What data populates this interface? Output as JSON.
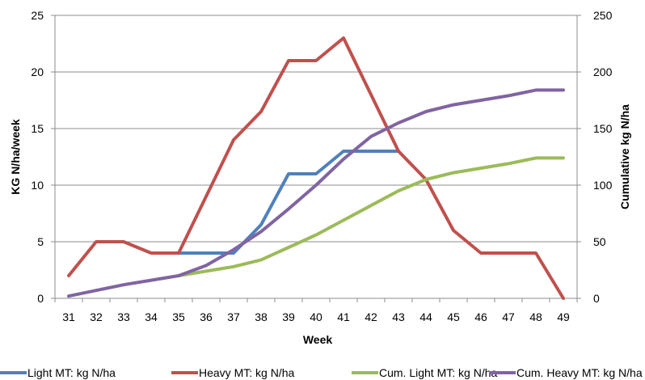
{
  "chart_data": {
    "type": "line",
    "xlabel": "Week",
    "ylabel": "KG N/ha/week",
    "y2label": "Cumulative kg N/ha",
    "x": [
      31,
      32,
      33,
      34,
      35,
      36,
      37,
      38,
      39,
      40,
      41,
      42,
      43,
      44,
      45,
      46,
      47,
      48,
      49
    ],
    "ylim": [
      0,
      25
    ],
    "y2lim": [
      0,
      250
    ],
    "yticks": [
      0,
      5,
      10,
      15,
      20,
      25
    ],
    "y2ticks": [
      0,
      50,
      100,
      150,
      200,
      250
    ],
    "grid": true,
    "legend_position": "bottom",
    "series": [
      {
        "name": "Light MT: kg N/ha",
        "axis": "left",
        "color": "#4F81BD",
        "values": [
          null,
          null,
          null,
          null,
          4,
          4,
          4,
          6.5,
          11,
          11,
          13,
          13,
          13,
          null,
          null,
          null,
          null,
          null,
          null
        ]
      },
      {
        "name": "Heavy MT: kg N/ha",
        "axis": "left",
        "color": "#C0504D",
        "values": [
          2,
          5,
          5,
          4,
          4,
          9,
          14,
          16.5,
          21,
          21,
          23,
          18,
          13,
          10.5,
          6,
          4,
          4,
          4,
          0
        ]
      },
      {
        "name": "Cum. Light MT: kg N/ha",
        "axis": "right",
        "color": "#9BBB59",
        "values": [
          null,
          null,
          null,
          null,
          20,
          24,
          28,
          34,
          45,
          56,
          69,
          82,
          95,
          105,
          111,
          115,
          119,
          124,
          124
        ]
      },
      {
        "name": "Cum. Heavy MT: kg N/ha",
        "axis": "right",
        "color": "#8064A2",
        "values": [
          2,
          7,
          12,
          16,
          20,
          29,
          43,
          59,
          79,
          100,
          123,
          143,
          155,
          165,
          171,
          175,
          179,
          184,
          184
        ]
      }
    ]
  }
}
